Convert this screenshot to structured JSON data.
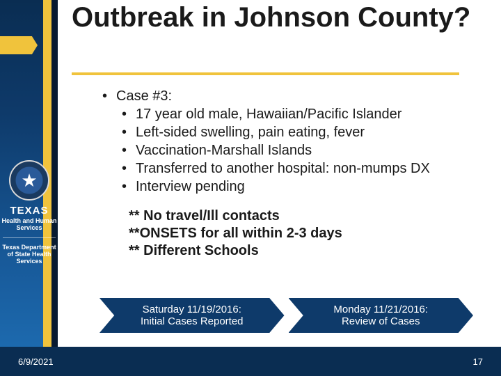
{
  "colors": {
    "bg_gradient_top": "#0a2d52",
    "bg_gradient_bottom": "#1e6fb5",
    "gold": "#f0c33c",
    "white": "#ffffff",
    "text": "#1a1a1a",
    "chevron_bg": "#0e3a6a"
  },
  "typography": {
    "title_fontsize": 40,
    "body_fontsize": 20,
    "chevron_fontsize": 15,
    "footer_fontsize": 13
  },
  "sidebar": {
    "brand_name": "TEXAS",
    "brand_sub": "Health and Human Services",
    "brand_dept": "Texas Department of State Health Services"
  },
  "title": "Outbreak in Johnson County?",
  "bullets": {
    "l1": "Case #3:",
    "l2a": "17 year old male, Hawaiian/Pacific Islander",
    "l2b": "Left-sided swelling, pain eating, fever",
    "l2c": "Vaccination-Marshall Islands",
    "l2d": "Transferred to another hospital: non-mumps DX",
    "l2e": "Interview pending"
  },
  "notes": {
    "n1": "** No travel/Ill contacts",
    "n2": "**ONSETS for all within 2-3 days",
    "n3": "** Different Schools"
  },
  "chevrons": {
    "c1_line1": "Saturday 11/19/2016:",
    "c1_line2": "Initial Cases Reported",
    "c2_line1": "Monday 11/21/2016:",
    "c2_line2": "Review of Cases"
  },
  "footer": {
    "date": "6/9/2021",
    "page": "17"
  }
}
